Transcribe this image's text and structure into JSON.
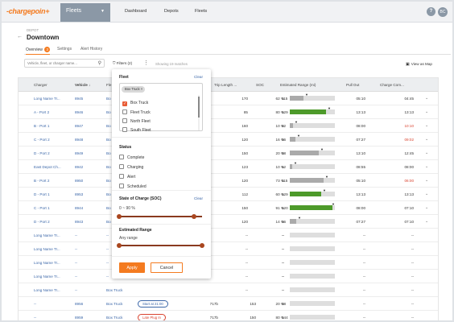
{
  "topnav": {
    "logo": "-chargepoin+",
    "app": "Fleets",
    "links": [
      "Dashboard",
      "Depots",
      "Fleets"
    ],
    "help": "?",
    "avatar": "BC"
  },
  "header": {
    "eyebrow": "DEPOT",
    "title": "Downtown",
    "tabs": [
      {
        "label": "Overview",
        "badge": "3"
      },
      {
        "label": "Settings"
      },
      {
        "label": "Alert History"
      }
    ]
  },
  "toolbar": {
    "search_placeholder": "Vehicle, fleet, or charger name...",
    "filters": "Filters (2)",
    "showing": "Showing 19 matches",
    "map": "View as Map"
  },
  "table": {
    "columns": [
      "Charger",
      "Vehicle",
      "Fle",
      "Trip Length ...",
      "SOC",
      "Estimated Range (mi)",
      "Pull Out",
      "Charge Com..."
    ],
    "rows": [
      {
        "charger": "Long Name Tr...",
        "vehicle": "8945",
        "fleet": "Bo",
        "trip": "170",
        "soc": "62 %",
        "range": "115",
        "fill": 0.3,
        "green": false,
        "pullout": "05:10",
        "complete": "04:45",
        "red": false
      },
      {
        "charger": "A - Port 2",
        "vehicle": "8946",
        "fleet": "Bo",
        "trip": "85",
        "soc": "80 %",
        "range": "129",
        "fill": 0.8,
        "green": true,
        "pullout": "13:13",
        "complete": "13:13",
        "red": false
      },
      {
        "charger": "B - Port 1",
        "vehicle": "8947",
        "fleet": "Bo",
        "trip": "160",
        "soc": "10 %",
        "range": "22",
        "fill": 0.08,
        "green": false,
        "pullout": "08:00",
        "complete": "10:10",
        "red": true
      },
      {
        "charger": "C - Port 2",
        "vehicle": "8948",
        "fleet": "Bo",
        "trip": "120",
        "soc": "16 %",
        "range": "36",
        "fill": 0.12,
        "green": false,
        "pullout": "07:27",
        "complete": "09:02",
        "red": true
      },
      {
        "charger": "D - Port 2",
        "vehicle": "8949",
        "fleet": "Bo",
        "trip": "150",
        "soc": "20 %",
        "range": "38",
        "fill": 0.65,
        "green": false,
        "pullout": "13:10",
        "complete": "12:45",
        "red": false
      },
      {
        "charger": "East Depot Ch...",
        "vehicle": "8942",
        "fleet": "Bo",
        "trip": "123",
        "soc": "10 %",
        "range": "12",
        "fill": 0.06,
        "green": false,
        "pullout": "08:55",
        "complete": "08:00",
        "red": false
      },
      {
        "charger": "B - Port 2",
        "vehicle": "8950",
        "fleet": "Bo",
        "trip": "120",
        "soc": "73 %",
        "range": "115",
        "fill": 0.75,
        "green": false,
        "pullout": "05:10",
        "complete": "06:00",
        "red": true
      },
      {
        "charger": "D - Port 1",
        "vehicle": "8953",
        "fleet": "Bo",
        "trip": "112",
        "soc": "60 %",
        "range": "129",
        "fill": 0.7,
        "green": true,
        "pullout": "13:13",
        "complete": "13:13",
        "red": false
      },
      {
        "charger": "C - Port 1",
        "vehicle": "8944",
        "fleet": "Bo",
        "trip": "150",
        "soc": "91 %",
        "range": "120",
        "fill": 0.95,
        "green": true,
        "pullout": "08:00",
        "complete": "07:10",
        "red": false
      },
      {
        "charger": "D - Port 2",
        "vehicle": "8943",
        "fleet": "Bo",
        "trip": "120",
        "soc": "14 %",
        "range": "36",
        "fill": 0.14,
        "green": false,
        "pullout": "07:27",
        "complete": "07:10",
        "red": false
      },
      {
        "charger": "Long Name Tr...",
        "vehicle": "--",
        "fleet": "--",
        "trip": "--",
        "soc": "--",
        "range": "--",
        "fill": 0,
        "green": false,
        "pullout": "--",
        "complete": "--",
        "red": false
      },
      {
        "charger": "Long Name Tr...",
        "vehicle": "--",
        "fleet": "--",
        "trip": "--",
        "soc": "--",
        "range": "--",
        "fill": 0,
        "green": false,
        "pullout": "--",
        "complete": "--",
        "red": false
      },
      {
        "charger": "Long Name Tr...",
        "vehicle": "--",
        "fleet": "--",
        "trip": "--",
        "soc": "--",
        "range": "--",
        "fill": 0,
        "green": false,
        "pullout": "--",
        "complete": "--",
        "red": false
      },
      {
        "charger": "Long Name Tr...",
        "vehicle": "--",
        "fleet": "--",
        "trip": "--",
        "soc": "--",
        "range": "--",
        "fill": 0,
        "green": false,
        "pullout": "--",
        "complete": "--",
        "red": false
      },
      {
        "charger": "Long Name Tr...",
        "vehicle": "--",
        "fleet": "Box Truck",
        "trip": "--",
        "soc": "--",
        "range": "--",
        "fill": 0,
        "green": false,
        "pullout": "--",
        "complete": "--",
        "red": false
      },
      {
        "charger": "--",
        "vehicle": "8956",
        "fleet": "Box Truck",
        "status": "Start at 21:00",
        "status_blue": true,
        "trip": "717b",
        "soc": "153",
        "soc2": "20 %",
        "range": "38",
        "fill": 0,
        "green": false,
        "pullout": "--",
        "complete": "--",
        "red": false
      },
      {
        "charger": "--",
        "vehicle": "8959",
        "fleet": "Box Truck",
        "status": "Late Plug In",
        "status_blue": false,
        "trip": "717b",
        "soc": "150",
        "soc2": "80 %",
        "range": "144",
        "fill": 0,
        "green": false,
        "pullout": "--",
        "complete": "--",
        "red": false
      }
    ]
  },
  "filter_panel": {
    "fleet_title": "Fleet",
    "clear": "Clear",
    "chip": "Box Truck",
    "fleet_options": [
      {
        "label": "Box Truck",
        "checked": true
      },
      {
        "label": "Fleet Truck",
        "checked": false
      },
      {
        "label": "North Fleet",
        "checked": false
      },
      {
        "label": "South Fleet",
        "checked": false
      }
    ],
    "status_title": "Status",
    "status_options": [
      "Complete",
      "Charging",
      "Alert",
      "Scheduled"
    ],
    "soc_title": "State of Charge (SOC)",
    "soc_clear": "Clear",
    "soc_range": "0 ~ 90 %",
    "soc_lo": 0,
    "soc_hi": 0.9,
    "range_title": "Estimated Range",
    "range_value": "Any range",
    "range_lo": 0,
    "range_hi": 1,
    "apply": "Apply",
    "cancel": "Cancel"
  }
}
